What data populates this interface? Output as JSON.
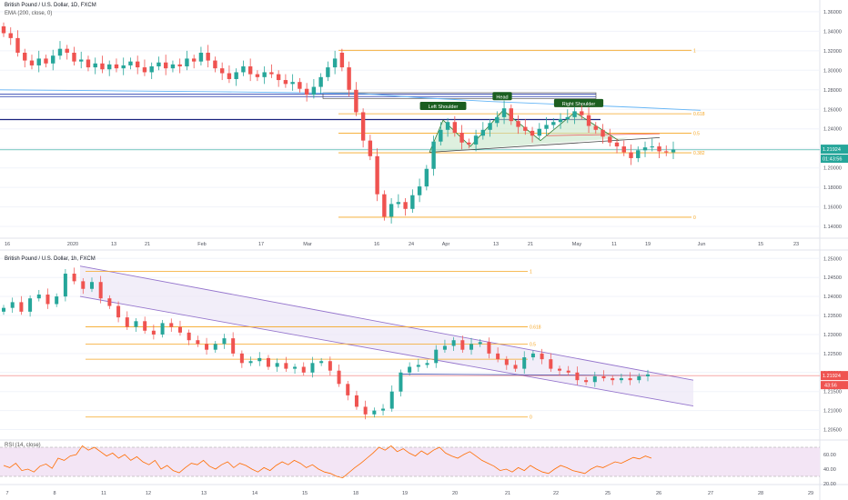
{
  "colors": {
    "up": "#26a69a",
    "down": "#ef5350",
    "fib": "#f5a623",
    "ema": "#64b5f6",
    "channel": "#9575cd",
    "channel_fill": "#ede7f6",
    "rsi_line": "#ff6d00",
    "rsi_band": "#f3e5f5",
    "hs_fill": "#c8e6c9",
    "price_tag": "#26a69a",
    "price_tag2": "#ef5350",
    "grid": "#f0f3fa",
    "axis_text": "#50535e"
  },
  "chart_data": [
    {
      "type": "candlestick",
      "title": "British Pound / U.S. Dollar, 1D, FXCM",
      "indicator": "EMA (200, close, 0)",
      "x_ticks": [
        "16",
        "2020",
        "13",
        "21",
        "Feb",
        "17",
        "Mar",
        "16",
        "24",
        "Apr",
        "13",
        "21",
        "May",
        "11",
        "19",
        "Jun",
        "15",
        "23"
      ],
      "y_ticks": [
        "1.36000",
        "1.34000",
        "1.32000",
        "1.30000",
        "1.28000",
        "1.26000",
        "1.24000",
        "1.22000",
        "1.20000",
        "1.18000",
        "1.16000",
        "1.14000"
      ],
      "ylim": [
        1.128,
        1.372
      ],
      "fib_levels": [
        {
          "label": "1",
          "value": 1.3205
        },
        {
          "label": "0.618",
          "value": 1.2555
        },
        {
          "label": "0.5",
          "value": 1.2355
        },
        {
          "label": "0.382",
          "value": 1.2155
        },
        {
          "label": "0",
          "value": 1.1495
        }
      ],
      "pattern_labels": [
        "Left Shoulder",
        "Head",
        "Right Shoulder"
      ],
      "price_labels": [
        "1.21924",
        "01:43:56"
      ],
      "close": [
        1.338,
        1.333,
        1.318,
        1.31,
        1.305,
        1.312,
        1.307,
        1.315,
        1.322,
        1.318,
        1.309,
        1.311,
        1.303,
        1.307,
        1.301,
        1.306,
        1.302,
        1.305,
        1.309,
        1.303,
        1.298,
        1.304,
        1.308,
        1.302,
        1.306,
        1.304,
        1.312,
        1.309,
        1.318,
        1.31,
        1.302,
        1.297,
        1.291,
        1.298,
        1.304,
        1.296,
        1.293,
        1.298,
        1.296,
        1.29,
        1.286,
        1.288,
        1.281,
        1.275,
        1.283,
        1.293,
        1.303,
        1.312,
        1.303,
        1.28,
        1.257,
        1.228,
        1.212,
        1.173,
        1.15,
        1.163,
        1.165,
        1.158,
        1.172,
        1.181,
        1.199,
        1.227,
        1.239,
        1.247,
        1.236,
        1.226,
        1.224,
        1.233,
        1.239,
        1.246,
        1.252,
        1.261,
        1.248,
        1.242,
        1.238,
        1.233,
        1.24,
        1.244,
        1.247,
        1.25,
        1.252,
        1.258,
        1.254,
        1.243,
        1.239,
        1.232,
        1.226,
        1.222,
        1.216,
        1.21,
        1.218,
        1.221,
        1.222,
        1.217,
        1.216,
        1.219
      ],
      "open": [
        1.345,
        1.338,
        1.333,
        1.318,
        1.31,
        1.305,
        1.312,
        1.307,
        1.315,
        1.322,
        1.318,
        1.309,
        1.311,
        1.303,
        1.307,
        1.301,
        1.306,
        1.302,
        1.305,
        1.309,
        1.303,
        1.298,
        1.304,
        1.308,
        1.302,
        1.306,
        1.304,
        1.312,
        1.309,
        1.318,
        1.31,
        1.302,
        1.297,
        1.291,
        1.298,
        1.304,
        1.296,
        1.293,
        1.298,
        1.296,
        1.29,
        1.286,
        1.288,
        1.281,
        1.275,
        1.283,
        1.293,
        1.303,
        1.318,
        1.303,
        1.28,
        1.257,
        1.228,
        1.212,
        1.173,
        1.15,
        1.163,
        1.165,
        1.158,
        1.172,
        1.181,
        1.199,
        1.227,
        1.239,
        1.247,
        1.236,
        1.226,
        1.224,
        1.233,
        1.239,
        1.246,
        1.252,
        1.261,
        1.248,
        1.242,
        1.238,
        1.233,
        1.24,
        1.244,
        1.247,
        1.25,
        1.252,
        1.258,
        1.254,
        1.243,
        1.239,
        1.232,
        1.226,
        1.222,
        1.216,
        1.21,
        1.218,
        1.221,
        1.222,
        1.217,
        1.216
      ]
    },
    {
      "type": "candlestick",
      "title": "British Pound / U.S. Dollar, 1h, FXCM",
      "x_ticks": [
        "7",
        "8",
        "11",
        "12",
        "13",
        "14",
        "15",
        "18",
        "19",
        "20",
        "21",
        "22",
        "25",
        "26",
        "27",
        "28",
        "29"
      ],
      "y_ticks": [
        "1.25000",
        "1.24500",
        "1.24000",
        "1.23500",
        "1.23000",
        "1.22500",
        "1.22000",
        "1.21500",
        "1.21000",
        "1.20500"
      ],
      "ylim": [
        1.2025,
        1.2515
      ],
      "fib_levels": [
        {
          "label": "1",
          "value": 1.2466
        },
        {
          "label": "0.618",
          "value": 1.232
        },
        {
          "label": "0.5",
          "value": 1.2275
        },
        {
          "label": "0",
          "value": 1.2083
        }
      ],
      "price_labels": [
        "1.21924",
        "43:56"
      ],
      "close": [
        1.237,
        1.2385,
        1.236,
        1.2395,
        1.2405,
        1.238,
        1.24,
        1.246,
        1.244,
        1.242,
        1.2438,
        1.2395,
        1.2375,
        1.2345,
        1.232,
        1.2335,
        1.231,
        1.23,
        1.233,
        1.232,
        1.2305,
        1.2285,
        1.2275,
        1.226,
        1.2275,
        1.229,
        1.225,
        1.2225,
        1.223,
        1.2238,
        1.2215,
        1.2225,
        1.221,
        1.2215,
        1.22,
        1.2225,
        1.223,
        1.2205,
        1.217,
        1.214,
        1.211,
        1.209,
        1.21,
        1.2105,
        1.215,
        1.22,
        1.2215,
        1.222,
        1.2225,
        1.226,
        1.227,
        1.2285,
        1.226,
        1.2275,
        1.228,
        1.225,
        1.2235,
        1.222,
        1.221,
        1.224,
        1.225,
        1.2235,
        1.221,
        1.2205,
        1.22,
        1.218,
        1.2175,
        1.219,
        1.2185,
        1.218,
        1.2185,
        1.218,
        1.219,
        1.2195
      ],
      "open": [
        1.236,
        1.237,
        1.2385,
        1.236,
        1.2395,
        1.2405,
        1.238,
        1.24,
        1.246,
        1.244,
        1.242,
        1.2438,
        1.2395,
        1.2375,
        1.2345,
        1.232,
        1.2335,
        1.231,
        1.23,
        1.233,
        1.232,
        1.2305,
        1.2285,
        1.2275,
        1.226,
        1.2275,
        1.229,
        1.225,
        1.2225,
        1.223,
        1.2238,
        1.2215,
        1.2225,
        1.221,
        1.2215,
        1.22,
        1.2225,
        1.223,
        1.2205,
        1.217,
        1.214,
        1.211,
        1.209,
        1.21,
        1.2105,
        1.215,
        1.22,
        1.2215,
        1.222,
        1.2225,
        1.226,
        1.227,
        1.2285,
        1.226,
        1.2275,
        1.228,
        1.225,
        1.2235,
        1.222,
        1.221,
        1.224,
        1.225,
        1.2235,
        1.221,
        1.2205,
        1.22,
        1.218,
        1.2175,
        1.219,
        1.2185,
        1.218,
        1.2185,
        1.218,
        1.219
      ]
    },
    {
      "type": "line",
      "title": "RSI (14, close)",
      "y_ticks": [
        "60.00",
        "40.00",
        "20.00"
      ],
      "ylim": [
        20,
        80
      ],
      "bands": [
        70,
        30
      ],
      "values": [
        45,
        42,
        48,
        38,
        40,
        36,
        44,
        47,
        41,
        55,
        52,
        58,
        60,
        72,
        66,
        70,
        64,
        58,
        62,
        55,
        60,
        52,
        57,
        50,
        46,
        52,
        40,
        45,
        38,
        35,
        42,
        48,
        46,
        52,
        44,
        40,
        46,
        50,
        42,
        48,
        45,
        40,
        36,
        42,
        38,
        45,
        50,
        46,
        52,
        48,
        42,
        46,
        40,
        36,
        34,
        30,
        28,
        35,
        42,
        48,
        55,
        62,
        70,
        66,
        72,
        64,
        68,
        62,
        58,
        65,
        60,
        66,
        70,
        62,
        58,
        55,
        60,
        64,
        58,
        52,
        48,
        44,
        38,
        40,
        36,
        42,
        38,
        45,
        40,
        36,
        34,
        40,
        45,
        42,
        38,
        36,
        34,
        40,
        44,
        42,
        46,
        50,
        48,
        52,
        56,
        54,
        58,
        55
      ]
    }
  ]
}
